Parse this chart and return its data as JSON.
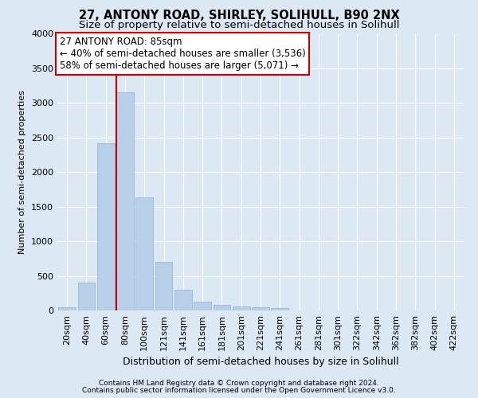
{
  "title1": "27, ANTONY ROAD, SHIRLEY, SOLIHULL, B90 2NX",
  "title2": "Size of property relative to semi-detached houses in Solihull",
  "xlabel": "Distribution of semi-detached houses by size in Solihull",
  "ylabel": "Number of semi-detached properties",
  "footnote1": "Contains HM Land Registry data © Crown copyright and database right 2024.",
  "footnote2": "Contains public sector information licensed under the Open Government Licence v3.0.",
  "bins": [
    "20sqm",
    "40sqm",
    "60sqm",
    "80sqm",
    "100sqm",
    "121sqm",
    "141sqm",
    "161sqm",
    "181sqm",
    "201sqm",
    "221sqm",
    "241sqm",
    "261sqm",
    "281sqm",
    "301sqm",
    "322sqm",
    "342sqm",
    "362sqm",
    "382sqm",
    "402sqm",
    "422sqm"
  ],
  "bar_values": [
    50,
    400,
    2420,
    3150,
    1640,
    700,
    300,
    130,
    80,
    60,
    50,
    30,
    5,
    3,
    3,
    2,
    2,
    2,
    1,
    1,
    1
  ],
  "bar_color": "#b8cfe8",
  "bar_edge_color": "#8ab0d4",
  "vline_index": 3,
  "vline_color": "#cc0000",
  "annotation_line1": "27 ANTONY ROAD: 85sqm",
  "annotation_line2": "← 40% of semi-detached houses are smaller (3,536)",
  "annotation_line3": "58% of semi-detached houses are larger (5,071) →",
  "annotation_box_color": "#ffffff",
  "annotation_box_edge": "#cc0000",
  "ylim": [
    0,
    4000
  ],
  "yticks": [
    0,
    500,
    1000,
    1500,
    2000,
    2500,
    3000,
    3500,
    4000
  ],
  "background_color": "#dde8f5",
  "plot_bg_color": "#dde8f5",
  "grid_color": "#ffffff",
  "title1_fontsize": 10.5,
  "title2_fontsize": 9.5,
  "xlabel_fontsize": 9,
  "ylabel_fontsize": 8,
  "tick_fontsize": 8,
  "annotation_fontsize": 8.5,
  "footnote_fontsize": 6.5
}
